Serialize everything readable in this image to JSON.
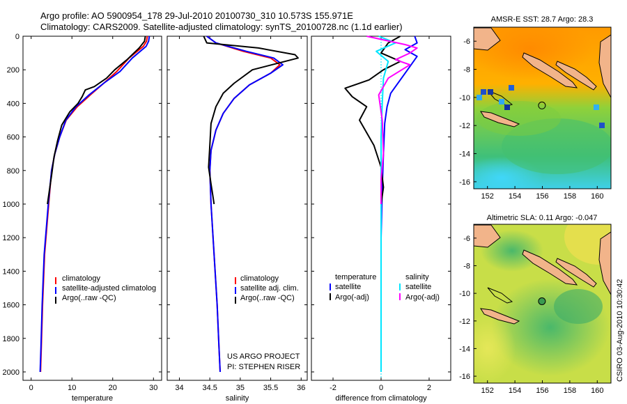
{
  "header": {
    "line1": "Argo profile: AO 5900954_178 29-Jul-2010 20100730_310 10.573S 155.971E",
    "line2": "Climatology: CARS2009. Satellite-adjusted climatology: synTS_20100728.nc (1.1d earlier)"
  },
  "colors": {
    "climatology": "#ff0000",
    "satellite": "#0000ff",
    "argo": "#000000",
    "salinity_sat": "#00e5ff",
    "salinity_argo": "#ff00ff"
  },
  "project": {
    "line1": "US ARGO PROJECT",
    "line2": "PI: STEPHEN RISER"
  },
  "side_label": "CSIRO 03-Aug-2010 10:30:42",
  "chart_data": [
    {
      "type": "line",
      "name": "temperature-profile",
      "xlabel": "temperature",
      "ylabel": "",
      "xlim": [
        -2,
        32
      ],
      "ylim": [
        0,
        2050
      ],
      "y_reversed": true,
      "xticks": [
        0,
        10,
        20,
        30
      ],
      "xtick_labels": [
        "0",
        "10",
        "20",
        "30"
      ],
      "yticks": [
        0,
        200,
        400,
        600,
        800,
        1000,
        1200,
        1400,
        1600,
        1800,
        2000
      ],
      "ytick_labels": [
        "0",
        "200",
        "400",
        "600",
        "800",
        "1000",
        "1200",
        "1400",
        "1600",
        "1800",
        "2000"
      ],
      "legend": [
        "climatology",
        "satellite-adjusted climatolog",
        "Argo(..raw -QC)"
      ],
      "series": [
        {
          "name": "climatology",
          "color": "#ff0000",
          "x": [
            28.5,
            28.3,
            27.5,
            24,
            21,
            17.8,
            14.5,
            11.3,
            8.6,
            7.0,
            5.8,
            5.0,
            4.3,
            3.3,
            2.8,
            2.5,
            2.3
          ],
          "y": [
            0,
            30,
            60,
            130,
            210,
            280,
            350,
            420,
            500,
            600,
            700,
            800,
            1000,
            1300,
            1600,
            1850,
            2000
          ]
        },
        {
          "name": "satellite",
          "color": "#0000ff",
          "x": [
            29,
            28.8,
            28.2,
            24.8,
            21.8,
            17.8,
            14.2,
            11,
            8.5,
            7.0,
            5.8,
            5.0,
            4.2,
            3.2,
            2.7,
            2.4,
            2.2
          ],
          "y": [
            0,
            30,
            60,
            130,
            210,
            280,
            350,
            420,
            500,
            600,
            700,
            800,
            1000,
            1300,
            1600,
            1850,
            2000
          ]
        },
        {
          "name": "argo",
          "color": "#000000",
          "x": [
            28.0,
            27.8,
            26.5,
            23.5,
            20.5,
            18.5,
            15.5,
            13.3,
            12.5,
            11.5,
            9.5,
            7.5,
            6.5,
            5.6,
            5.0,
            4.4,
            4.0
          ],
          "y": [
            0,
            30,
            70,
            140,
            200,
            250,
            300,
            320,
            360,
            400,
            450,
            530,
            620,
            720,
            830,
            930,
            1000
          ]
        }
      ]
    },
    {
      "type": "line",
      "name": "salinity-profile",
      "xlabel": "salinity",
      "xlim": [
        33.8,
        36.1
      ],
      "ylim": [
        0,
        2050
      ],
      "y_reversed": true,
      "xticks": [
        34,
        34.5,
        35,
        35.5,
        36
      ],
      "xtick_labels": [
        "34",
        "34.5",
        "35",
        "35.5",
        "36"
      ],
      "legend": [
        "climatology",
        "satellite adj. clim.",
        "Argo(..raw -QC)"
      ],
      "series": [
        {
          "name": "climatology",
          "color": "#ff0000",
          "x": [
            34.45,
            34.6,
            35.05,
            35.5,
            35.65,
            35.5,
            35.15,
            34.9,
            34.72,
            34.6,
            34.52,
            34.5,
            34.52,
            34.57,
            34.62,
            34.65,
            34.67
          ],
          "y": [
            0,
            40,
            90,
            130,
            170,
            220,
            290,
            370,
            460,
            560,
            680,
            800,
            1000,
            1300,
            1600,
            1850,
            2000
          ]
        },
        {
          "name": "satellite",
          "color": "#0000ff",
          "x": [
            34.45,
            34.6,
            35.1,
            35.55,
            35.7,
            35.5,
            35.15,
            34.9,
            34.72,
            34.6,
            34.52,
            34.5,
            34.52,
            34.57,
            34.62,
            34.65,
            34.67
          ],
          "y": [
            0,
            40,
            90,
            130,
            170,
            220,
            290,
            370,
            460,
            560,
            680,
            800,
            1000,
            1300,
            1600,
            1850,
            2000
          ]
        },
        {
          "name": "argo",
          "color": "#000000",
          "x": [
            34.4,
            34.45,
            35.3,
            35.9,
            35.95,
            35.2,
            34.9,
            34.72,
            34.6,
            34.52,
            34.5,
            34.48,
            34.52,
            34.55,
            34.57
          ],
          "y": [
            0,
            40,
            70,
            110,
            130,
            200,
            280,
            340,
            420,
            520,
            650,
            780,
            880,
            950,
            1000
          ]
        }
      ]
    },
    {
      "type": "line",
      "name": "difference-profile",
      "xlabel": "difference from climatology",
      "xlim": [
        -2.9,
        2.9
      ],
      "ylim": [
        0,
        2050
      ],
      "y_reversed": true,
      "xticks": [
        -2,
        0,
        2
      ],
      "xtick_labels": [
        "-2",
        "0",
        "2"
      ],
      "legend": {
        "temperature": {
          "title": "temperature",
          "items": [
            "satellite",
            "Argo(-adj)"
          ]
        },
        "salinity": {
          "title": "salinity",
          "items": [
            "satellite",
            "Argo(-adj)"
          ]
        }
      },
      "series": [
        {
          "name": "temperature satellite",
          "color": "#0000ff",
          "x": [
            1.4,
            1.5,
            1.0,
            1.5,
            1.2,
            0.8,
            0.4,
            0.25,
            0.15,
            0.1,
            0.05,
            0.0,
            0.0,
            0.0
          ],
          "y": [
            0,
            40,
            80,
            120,
            180,
            260,
            340,
            420,
            520,
            700,
            900,
            1200,
            1600,
            2000
          ]
        },
        {
          "name": "temperature Argo(-adj)",
          "color": "#000000",
          "x": [
            0.8,
            0.3,
            0.0,
            0.8,
            0.1,
            -0.5,
            -1.5,
            -1.2,
            -0.6,
            -0.9,
            -0.3,
            0.0,
            0.1,
            0.0
          ],
          "y": [
            0,
            40,
            100,
            150,
            200,
            260,
            310,
            360,
            420,
            500,
            650,
            780,
            900,
            1000
          ]
        },
        {
          "name": "salinity satellite",
          "color": "#00e5ff",
          "x": [
            -0.1,
            0.6,
            -0.2,
            0.3,
            0.1,
            0.05,
            0.0,
            0.0,
            0.0,
            0.0
          ],
          "y": [
            0,
            40,
            90,
            150,
            250,
            400,
            600,
            900,
            1400,
            2000
          ]
        },
        {
          "name": "salinity Argo(-adj)",
          "color": "#ff00ff",
          "x": [
            -0.6,
            1.0,
            1.5,
            1.2,
            0.6,
            1.2,
            0.3,
            -0.1,
            0.05,
            0.1,
            0.0,
            0.0
          ],
          "y": [
            0,
            50,
            70,
            100,
            140,
            170,
            250,
            350,
            500,
            700,
            850,
            1000
          ]
        }
      ]
    },
    {
      "type": "heatmap",
      "name": "sst-map",
      "title": "AMSR-E SST: 28.7  Argo: 28.3",
      "xlim": [
        151,
        161
      ],
      "ylim": [
        -16.5,
        -5
      ],
      "xticks": [
        152,
        154,
        156,
        158,
        160
      ],
      "xtick_labels": [
        "152",
        "154",
        "156",
        "158",
        "160"
      ],
      "yticks": [
        -6,
        -8,
        -10,
        -12,
        -14,
        -16
      ],
      "ytick_labels": [
        "-6",
        "-8",
        "-10",
        "-12",
        "-14",
        "-16"
      ],
      "argo_position": {
        "lon": 155.971,
        "lat": -10.573
      }
    },
    {
      "type": "heatmap",
      "name": "sla-map",
      "title": "Altimetric SLA: 0.11  Argo: -0.047",
      "xlim": [
        151,
        161
      ],
      "ylim": [
        -16.5,
        -5
      ],
      "xticks": [
        152,
        154,
        156,
        158,
        160
      ],
      "xtick_labels": [
        "152",
        "154",
        "156",
        "158",
        "160"
      ],
      "yticks": [
        -6,
        -8,
        -10,
        -12,
        -14,
        -16
      ],
      "ytick_labels": [
        "-6",
        "-8",
        "-10",
        "-12",
        "-14",
        "-16"
      ],
      "argo_position": {
        "lon": 155.971,
        "lat": -10.573
      }
    }
  ]
}
